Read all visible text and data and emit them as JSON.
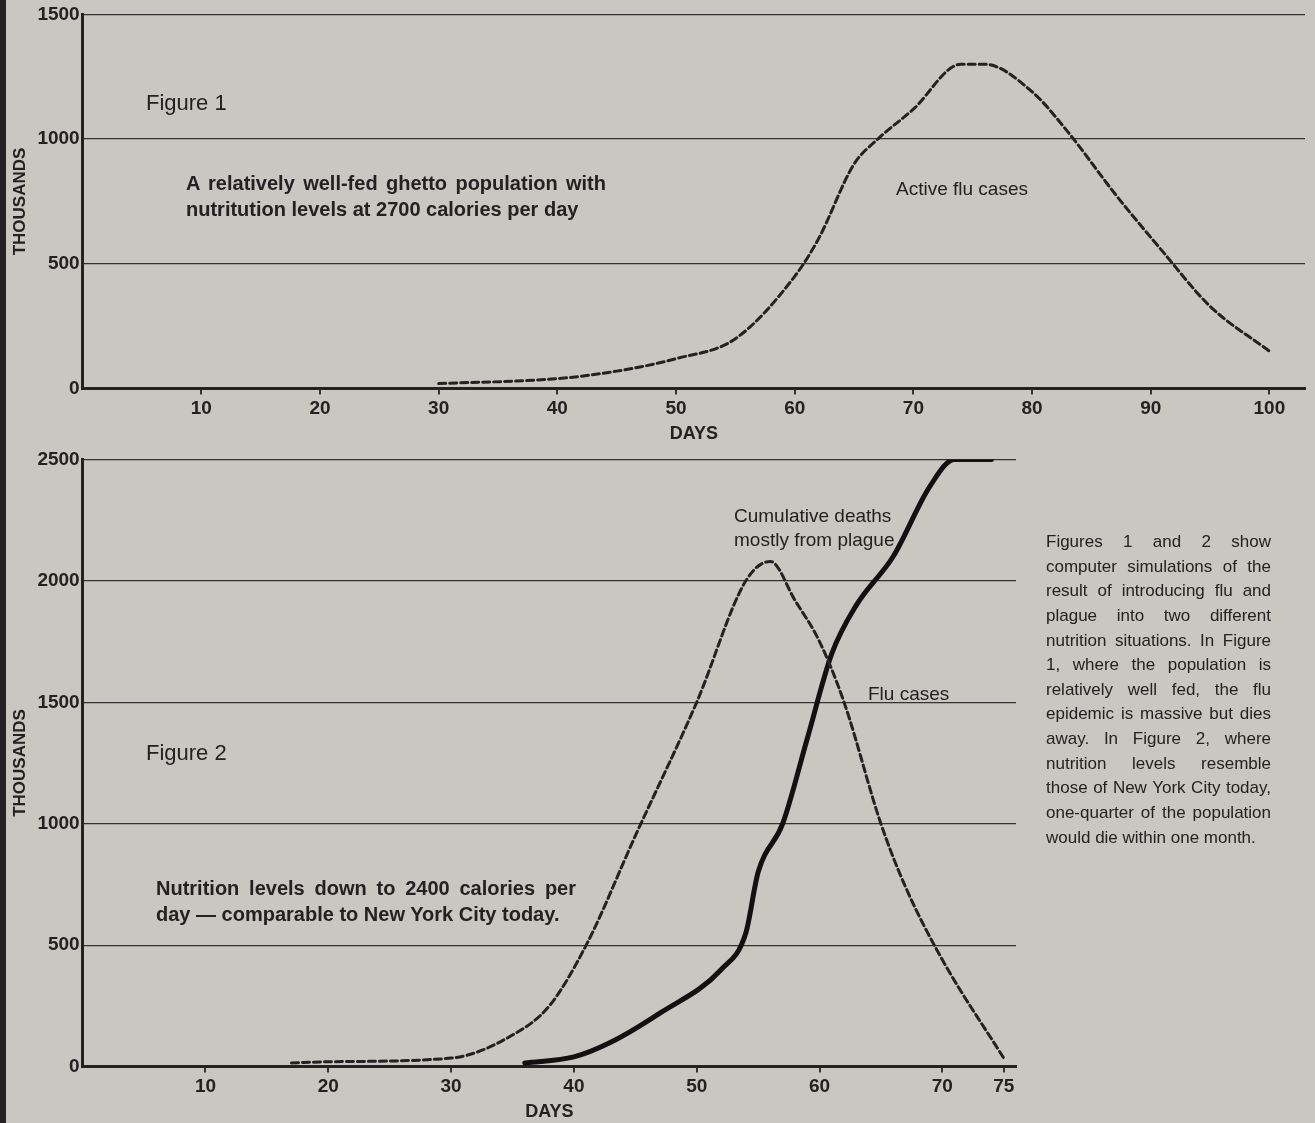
{
  "chart_data": [
    {
      "type": "line",
      "title": "Figure 1",
      "subtitle": "A relatively well-fed ghetto population with nutritution levels at 2700 calories per day",
      "xlabel": "DAYS",
      "ylabel": "THOUSANDS",
      "series": [
        {
          "name": "Active flu cases",
          "color": "#222222",
          "line_style": "dashed",
          "x": [
            30,
            40,
            45,
            50,
            55,
            60,
            62,
            65,
            67,
            70,
            74,
            76,
            80,
            83,
            87,
            91,
            95,
            100
          ],
          "values": [
            20,
            40,
            70,
            120,
            200,
            450,
            600,
            900,
            1000,
            1120,
            1300,
            1300,
            1190,
            1030,
            780,
            550,
            330,
            150
          ]
        }
      ],
      "xlim": [
        0,
        103
      ],
      "xticks": [
        10,
        20,
        30,
        40,
        50,
        60,
        70,
        80,
        90,
        100
      ],
      "ylim": [
        0,
        1500
      ],
      "yticks": [
        0,
        500,
        1000,
        1500
      ],
      "grid": "y",
      "legend": false,
      "marker": "none"
    },
    {
      "type": "line",
      "title": "Figure 2",
      "subtitle": "Nutrition levels down to 2400 calories per day — comparable to New York City today.",
      "xlabel": "DAYS",
      "ylabel": "THOUSANDS",
      "series": [
        {
          "name": "Flu cases",
          "color": "#222222",
          "line_style": "dashed",
          "x": [
            17,
            20,
            30,
            35,
            38,
            41,
            45,
            50,
            54,
            56,
            58,
            60,
            62,
            65,
            67,
            70,
            75
          ],
          "values": [
            15,
            20,
            35,
            130,
            250,
            500,
            950,
            1500,
            2000,
            2080,
            1920,
            1750,
            1500,
            1000,
            740,
            440,
            35
          ]
        },
        {
          "name": "Cumulative deaths mostly from plague",
          "color": "#111111",
          "line_style": "solid",
          "x": [
            36,
            40,
            43,
            47,
            52,
            54,
            55,
            57,
            59,
            61,
            63,
            66,
            69,
            71,
            74
          ],
          "values": [
            15,
            40,
            100,
            220,
            400,
            550,
            800,
            1000,
            1350,
            1700,
            1900,
            2100,
            2390,
            2500,
            2500
          ]
        }
      ],
      "annotations": [
        "Figures 1 and 2 show computer simulations of the result of introducing flu and plague into two different nutrition situations. In Figure 1, where the population is relatively well fed, the flu epidemic is massive but dies away. In Figure 2, where nutrition levels resemble those of New York City today, one-quarter of the population would die within one month."
      ],
      "xlim": [
        0,
        76
      ],
      "xticks": [
        10,
        20,
        30,
        40,
        50,
        60,
        70,
        75
      ],
      "ylim": [
        0,
        2500
      ],
      "yticks": [
        0,
        500,
        1000,
        1500,
        2000,
        2500
      ],
      "grid": "y",
      "legend": false,
      "marker": "none"
    }
  ]
}
